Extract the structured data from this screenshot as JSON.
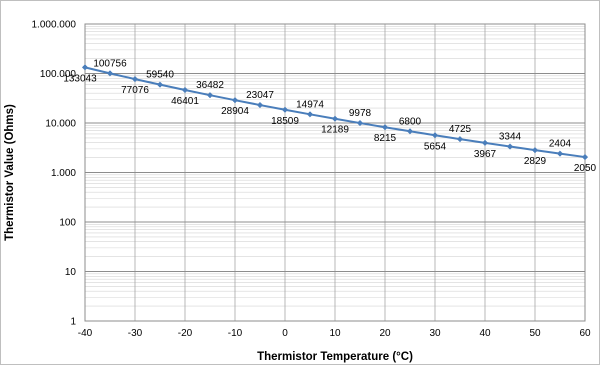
{
  "chart_data": {
    "type": "line",
    "title": "",
    "xlabel": "Thermistor Temperature (°C)",
    "ylabel": "Thermistor Value (Ohms)",
    "xlim": [
      -40,
      60
    ],
    "ylim": [
      1,
      1000000
    ],
    "yscale": "log",
    "grid": true,
    "legend": "none",
    "x_ticks": [
      "-40",
      "-30",
      "-20",
      "-10",
      "0",
      "10",
      "20",
      "30",
      "40",
      "50",
      "60"
    ],
    "y_ticks": [
      "1",
      "10",
      "100",
      "1.000",
      "10.000",
      "100.000",
      "1.000.000"
    ],
    "series": [
      {
        "color": "#4a7ebb",
        "x": [
          -40,
          -35,
          -30,
          -25,
          -20,
          -15,
          -10,
          -5,
          0,
          5,
          10,
          15,
          20,
          25,
          30,
          35,
          40,
          45,
          50,
          55,
          60
        ],
        "values": [
          133043,
          100756,
          77076,
          59540,
          46401,
          36482,
          28904,
          23047,
          18509,
          14974,
          12189,
          9978,
          8215,
          6800,
          5654,
          4725,
          3967,
          3344,
          2829,
          2404,
          2050
        ],
        "labels": [
          "133043",
          "100756",
          "77076",
          "59540",
          "46401",
          "36482",
          "28904",
          "23047",
          "18509",
          "14974",
          "12189",
          "9978",
          "8215",
          "6800",
          "5654",
          "4725",
          "3967",
          "3344",
          "2829",
          "2404",
          "2050"
        ]
      }
    ]
  }
}
